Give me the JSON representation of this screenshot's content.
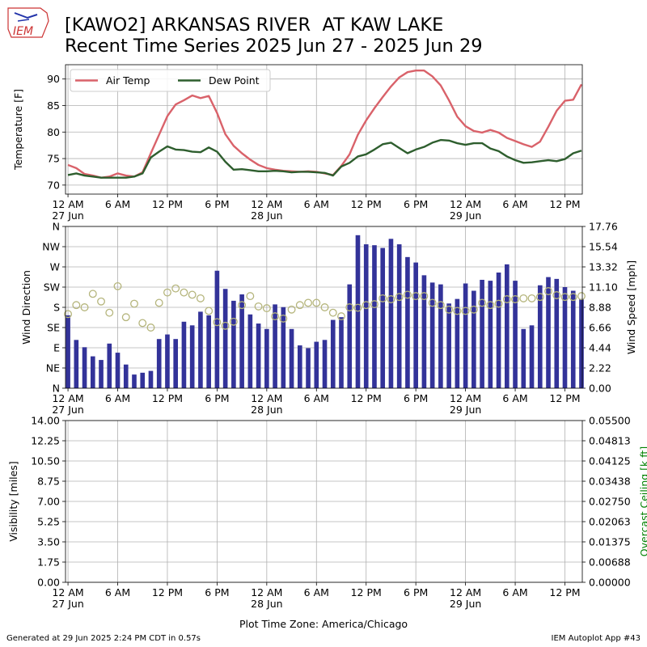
{
  "header": {
    "title_line1": "[KAWO2] ARKANSAS RIVER  AT KAW LAKE",
    "title_line2": "Recent Time Series 2025 Jun 27 - 2025 Jun 29",
    "logo_text": "IEM"
  },
  "footer": {
    "generated": "Generated at 29 Jun 2025 2:24 PM CDT in 0.57s",
    "app": "IEM Autoplot App #43",
    "timezone_label": "Plot Time Zone: America/Chicago"
  },
  "colors": {
    "air_temp": "#d9626a",
    "dew_point": "#2e5e2e",
    "wind_bar": "#333399",
    "wind_dir": "#b5b57c",
    "grid": "#b0b0b0",
    "ceiling_axis": "#008000"
  },
  "x_axis": {
    "ticks": [
      {
        "hour": 0,
        "label": "12 AM",
        "sub": "27 Jun"
      },
      {
        "hour": 6,
        "label": "6 AM",
        "sub": ""
      },
      {
        "hour": 12,
        "label": "12 PM",
        "sub": ""
      },
      {
        "hour": 18,
        "label": "6 PM",
        "sub": ""
      },
      {
        "hour": 24,
        "label": "12 AM",
        "sub": "28 Jun"
      },
      {
        "hour": 30,
        "label": "6 AM",
        "sub": ""
      },
      {
        "hour": 36,
        "label": "12 PM",
        "sub": ""
      },
      {
        "hour": 42,
        "label": "6 PM",
        "sub": ""
      },
      {
        "hour": 48,
        "label": "12 AM",
        "sub": "29 Jun"
      },
      {
        "hour": 54,
        "label": "6 AM",
        "sub": ""
      },
      {
        "hour": 60,
        "label": "12 PM",
        "sub": ""
      }
    ],
    "range_hours": [
      -0.3,
      62.1
    ]
  },
  "chart_data": [
    {
      "type": "line",
      "ylabel": "Temperature [F]",
      "ylim": [
        68.3,
        92.7
      ],
      "yticks": [
        70,
        75,
        80,
        85,
        90
      ],
      "grid": true,
      "legend_position": "upper-left",
      "x_hours": [
        0,
        1,
        2,
        3,
        4,
        5,
        6,
        7,
        8,
        9,
        10,
        11,
        12,
        13,
        14,
        15,
        16,
        17,
        18,
        19,
        20,
        21,
        22,
        23,
        24,
        25,
        26,
        27,
        28,
        29,
        30,
        31,
        32,
        33,
        34,
        35,
        36,
        37,
        38,
        39,
        40,
        41,
        42,
        43,
        44,
        45,
        46,
        47,
        48,
        49,
        50,
        51,
        52,
        53,
        54,
        55,
        56,
        57,
        58,
        59,
        60,
        61,
        62
      ],
      "series": [
        {
          "name": "Air Temp",
          "values": [
            73.8,
            73.2,
            72.1,
            71.8,
            71.4,
            71.6,
            72.2,
            71.8,
            71.6,
            72.4,
            76,
            79.5,
            83,
            85.2,
            86,
            86.9,
            86.4,
            86.8,
            83.6,
            79.6,
            77.4,
            76,
            74.8,
            73.8,
            73.2,
            72.9,
            72.7,
            72.6,
            72.5,
            72.6,
            72.5,
            72.2,
            71.9,
            73.6,
            75.8,
            79.5,
            82.2,
            84.5,
            86.6,
            88.6,
            90.3,
            91.3,
            91.6,
            91.6,
            90.5,
            88.8,
            86,
            82.9,
            81.1,
            80.2,
            79.9,
            80.4,
            79.9,
            78.9,
            78.3,
            77.7,
            77.2,
            78.2,
            81,
            84,
            85.9,
            86.1,
            89
          ]
        },
        {
          "name": "Dew Point",
          "values": [
            71.9,
            72.2,
            71.8,
            71.6,
            71.4,
            71.4,
            71.4,
            71.4,
            71.6,
            72.2,
            75.2,
            76.3,
            77.3,
            76.7,
            76.6,
            76.3,
            76.2,
            77.1,
            76.3,
            74.4,
            72.9,
            73,
            72.8,
            72.6,
            72.6,
            72.7,
            72.6,
            72.4,
            72.5,
            72.5,
            72.4,
            72.3,
            71.8,
            73.5,
            74.2,
            75.4,
            75.8,
            76.7,
            77.7,
            78,
            77,
            76,
            76.7,
            77.2,
            78,
            78.5,
            78.4,
            77.9,
            77.6,
            77.9,
            77.9,
            76.9,
            76.4,
            75.4,
            74.7,
            74.2,
            74.3,
            74.5,
            74.7,
            74.5,
            74.9,
            76,
            76.5
          ]
        }
      ]
    },
    {
      "type": "bar",
      "ylabel": "Wind Direction",
      "y2label": "Wind Speed [mph]",
      "direction_ticks": [
        "N",
        "NE",
        "E",
        "SE",
        "S",
        "SW",
        "W",
        "NW",
        "N"
      ],
      "speed_ticks": [
        "0.00",
        "2.22",
        "4.44",
        "6.66",
        "8.88",
        "11.10",
        "13.32",
        "15.54",
        "17.76"
      ],
      "ylim_speed": [
        0,
        17.76
      ],
      "ylim_direction_deg": [
        0,
        360
      ],
      "grid": true,
      "series": [
        {
          "name": "Wind Speed",
          "x_hours": [
            0,
            1,
            2,
            3,
            4,
            5,
            6,
            7,
            8,
            9,
            10,
            11,
            12,
            13,
            14,
            15,
            16,
            17,
            18,
            19,
            20,
            21,
            22,
            23,
            24,
            25,
            26,
            27,
            28,
            29,
            30,
            31,
            32,
            33,
            34,
            35,
            36,
            37,
            38,
            39,
            40,
            41,
            42,
            43,
            44,
            45,
            46,
            47,
            48,
            49,
            50,
            51,
            52,
            53,
            54,
            55,
            56,
            57,
            58,
            59,
            60,
            61,
            62
          ],
          "values": [
            8.0,
            5.3,
            4.5,
            3.5,
            3.1,
            4.9,
            3.9,
            2.6,
            1.5,
            1.7,
            1.9,
            5.4,
            5.9,
            5.4,
            7.3,
            6.9,
            8.4,
            8.0,
            12.9,
            10.9,
            9.6,
            10.3,
            8.1,
            7.1,
            6.5,
            9.2,
            8.9,
            6.5,
            4.7,
            4.4,
            5.1,
            5.3,
            7.5,
            7.8,
            11.4,
            16.8,
            15.8,
            15.7,
            15.4,
            16.4,
            15.8,
            14.4,
            13.8,
            12.4,
            11.6,
            11.4,
            9.3,
            9.8,
            11.5,
            10.7,
            11.9,
            11.8,
            12.7,
            13.6,
            11.8,
            6.5,
            6.9,
            11.3,
            12.2,
            12.0,
            11.1,
            10.7,
            9.8
          ]
        },
        {
          "name": "Wind Direction",
          "x_hours": [
            0,
            1,
            2,
            3,
            4,
            5,
            6,
            7,
            8,
            9,
            10,
            11,
            12,
            13,
            14,
            15,
            16,
            17,
            18,
            19,
            20,
            21,
            22,
            23,
            24,
            25,
            26,
            27,
            28,
            29,
            30,
            31,
            32,
            33,
            34,
            35,
            36,
            37,
            38,
            39,
            40,
            41,
            42,
            43,
            44,
            45,
            46,
            47,
            48,
            49,
            50,
            51,
            52,
            53,
            54,
            55,
            56,
            57,
            58,
            59,
            60,
            61,
            62
          ],
          "values": [
            165,
            185,
            180,
            210,
            193,
            168,
            227,
            158,
            188,
            145,
            135,
            190,
            213,
            222,
            213,
            208,
            200,
            172,
            147,
            139,
            148,
            185,
            205,
            182,
            178,
            160,
            155,
            175,
            185,
            190,
            190,
            180,
            168,
            160,
            180,
            179,
            185,
            187,
            200,
            198,
            203,
            208,
            205,
            205,
            190,
            185,
            175,
            172,
            172,
            175,
            190,
            185,
            188,
            198,
            198,
            200,
            200,
            203,
            216,
            207,
            203,
            203,
            205
          ]
        }
      ]
    },
    {
      "type": "line",
      "ylabel": "Visibility [miles]",
      "y2label": "Overcast Ceiling [k ft]",
      "yticks": [
        "0.00",
        "1.75",
        "3.50",
        "5.25",
        "7.00",
        "8.75",
        "10.50",
        "12.25",
        "14.00"
      ],
      "y2ticks": [
        "0.00000",
        "0.00688",
        "0.01375",
        "0.02063",
        "0.02750",
        "0.03438",
        "0.04125",
        "0.04813",
        "0.05500"
      ],
      "ylim": [
        0,
        14
      ],
      "y2lim": [
        0,
        0.055
      ],
      "grid": true,
      "series": []
    }
  ]
}
